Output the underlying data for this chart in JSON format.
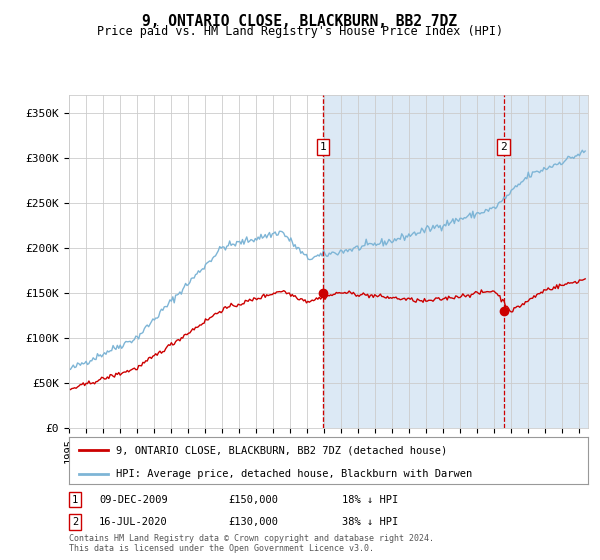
{
  "title": "9, ONTARIO CLOSE, BLACKBURN, BB2 7DZ",
  "subtitle": "Price paid vs. HM Land Registry's House Price Index (HPI)",
  "ylabel_ticks": [
    "£0",
    "£50K",
    "£100K",
    "£150K",
    "£200K",
    "£250K",
    "£300K",
    "£350K"
  ],
  "ytick_values": [
    0,
    50000,
    100000,
    150000,
    200000,
    250000,
    300000,
    350000
  ],
  "ylim": [
    0,
    370000
  ],
  "xlim_start": 1995.0,
  "xlim_end": 2025.5,
  "event1_x": 2009.92,
  "event1_y": 150000,
  "event2_x": 2020.54,
  "event2_y": 130000,
  "event1_date": "09-DEC-2009",
  "event1_price": "£150,000",
  "event1_hpi": "18% ↓ HPI",
  "event2_date": "16-JUL-2020",
  "event2_price": "£130,000",
  "event2_hpi": "38% ↓ HPI",
  "legend_line1": "9, ONTARIO CLOSE, BLACKBURN, BB2 7DZ (detached house)",
  "legend_line2": "HPI: Average price, detached house, Blackburn with Darwen",
  "footer": "Contains HM Land Registry data © Crown copyright and database right 2024.\nThis data is licensed under the Open Government Licence v3.0.",
  "hpi_color": "#7eb5d6",
  "price_color": "#cc0000",
  "shade_color": "#dce9f5",
  "event_line_color": "#cc0000",
  "bg_color": "#ffffff",
  "grid_color": "#cccccc"
}
